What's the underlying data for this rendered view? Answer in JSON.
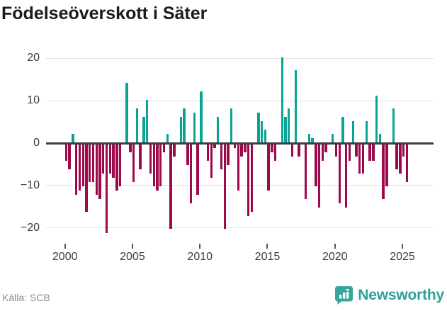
{
  "title": "Födelseöverskott i Säter",
  "footer": {
    "source_label": "Källa: SCB",
    "brand_name": "Newsworthy"
  },
  "colors": {
    "positive_bar": "#0aa396",
    "negative_bar": "#9e094c",
    "gridline": "#e2e2e2",
    "zero_axis": "#3d3d3d",
    "title_text": "#1a1a1a",
    "axis_label": "#3c3c3c",
    "source_text": "#8c8c8c",
    "brand_teal": "#2fa198",
    "background": "#ffffff"
  },
  "chart_data": {
    "type": "bar",
    "title": "Födelseöverskott i Säter",
    "frequency": "quarterly",
    "start": "2000-Q1",
    "end": "2025-Q2",
    "values": [
      -4,
      -6,
      2,
      -12,
      -11,
      -10,
      -16,
      -9,
      -9,
      -12,
      -13,
      -7,
      -21,
      -7,
      -8,
      -11,
      -10,
      0,
      14,
      -2,
      -9,
      8,
      -6,
      6,
      10,
      -7,
      -10,
      -11,
      -10,
      -2,
      2,
      -20,
      -3,
      0,
      6,
      8,
      -5,
      -14,
      7,
      -12,
      12,
      0,
      -4,
      -8,
      -1,
      6,
      -6,
      -20,
      -5,
      8,
      -1,
      -11,
      -3,
      -2,
      -17,
      -16,
      0,
      7,
      5,
      3,
      -11,
      -2,
      -4,
      0,
      20,
      6,
      8,
      -3,
      17,
      -3,
      0,
      -13,
      2,
      1,
      -10,
      -15,
      -4,
      -2,
      0,
      2,
      -3,
      -14,
      6,
      -15,
      -4,
      5,
      -3,
      -7,
      -7,
      5,
      -4,
      -4,
      11,
      2,
      -13,
      -10,
      0,
      8,
      -6,
      -7,
      -3,
      -9
    ],
    "x_tick_years": [
      2000,
      2005,
      2010,
      2015,
      2020,
      2025
    ],
    "y_ticks": [
      20,
      10,
      0,
      -10,
      -20
    ],
    "ylim": [
      -22,
      21
    ],
    "grid": "horizontal",
    "legend": "none",
    "positive_color": "#0aa396",
    "negative_color": "#9e094c",
    "ylabel": "",
    "xlabel": ""
  }
}
